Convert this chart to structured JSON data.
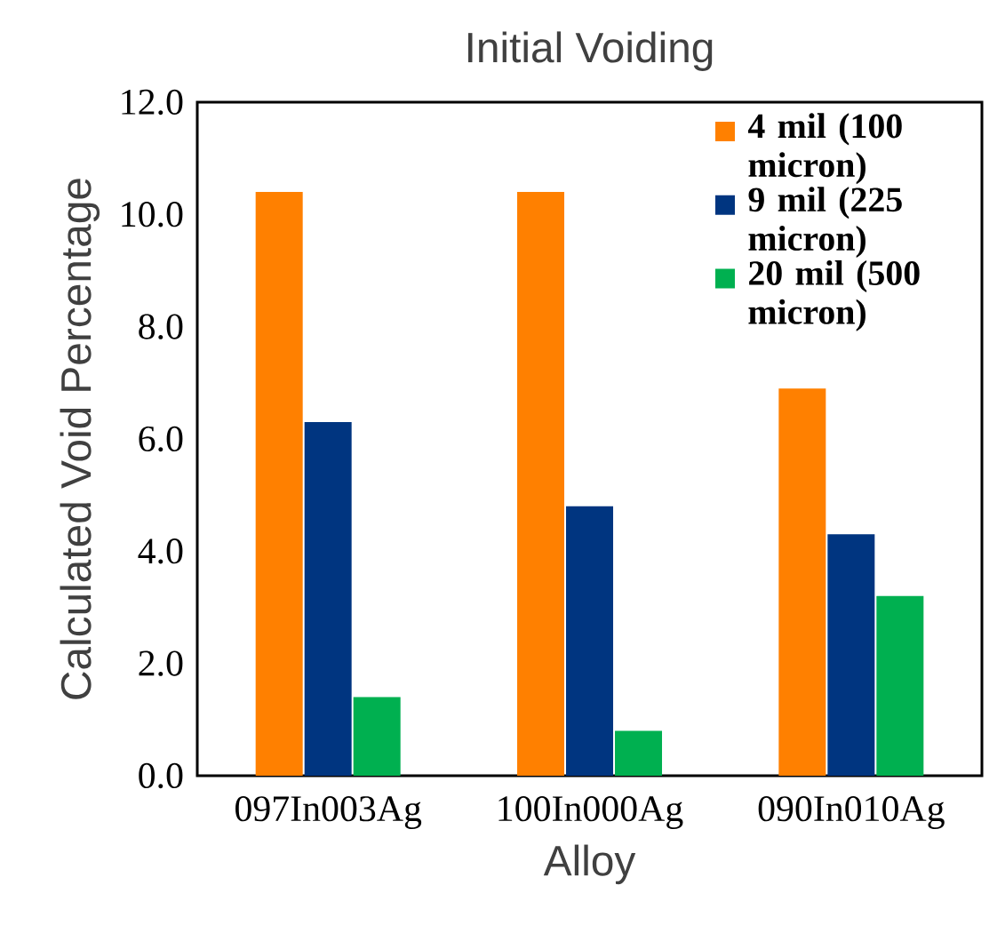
{
  "chart_data": {
    "type": "bar",
    "title": "Initial Voiding",
    "xlabel": "Alloy",
    "ylabel": "Calculated Void Percentage",
    "categories": [
      "097In003Ag",
      "100In000Ag",
      "090In010Ag"
    ],
    "series": [
      {
        "name": "4 mil (100 micron)",
        "color": "#ff8000",
        "values": [
          10.4,
          10.4,
          6.9
        ]
      },
      {
        "name": "9 mil (225 micron)",
        "color": "#003580",
        "values": [
          6.3,
          4.8,
          4.3
        ]
      },
      {
        "name": "20 mil (500 micron)",
        "color": "#00b050",
        "values": [
          1.4,
          0.8,
          3.2
        ]
      }
    ],
    "ylim": [
      0,
      12
    ],
    "yticks": [
      {
        "value": 0,
        "label": "0.0"
      },
      {
        "value": 2,
        "label": "2.0"
      },
      {
        "value": 4,
        "label": "4.0"
      },
      {
        "value": 6,
        "label": "6.0"
      },
      {
        "value": 8,
        "label": "8.0"
      },
      {
        "value": 10,
        "label": "10.0"
      },
      {
        "value": 12,
        "label": "12.0"
      }
    ],
    "legend": "top right",
    "grid": false
  }
}
